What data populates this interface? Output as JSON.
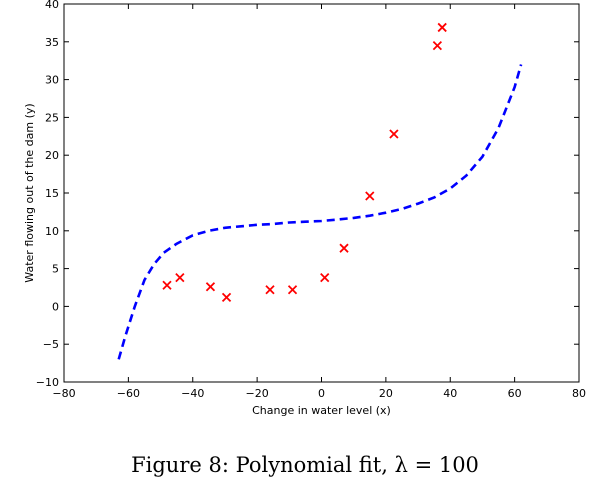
{
  "chart_data": {
    "type": "scatter",
    "xlabel": "Change in water level (x)",
    "ylabel": "Water flowing out of the dam (y)",
    "xlim": [
      -80,
      80
    ],
    "ylim": [
      -10,
      40
    ],
    "x_ticks": [
      -80,
      -60,
      -40,
      -20,
      0,
      20,
      40,
      60,
      80
    ],
    "y_ticks": [
      -10,
      -5,
      0,
      5,
      10,
      15,
      20,
      25,
      30,
      35,
      40
    ],
    "grid": false,
    "series": [
      {
        "kind": "scatter",
        "marker": "x",
        "color": "#ff0000",
        "points": [
          [
            -48,
            2.8
          ],
          [
            -44,
            3.8
          ],
          [
            -34.5,
            2.6
          ],
          [
            -29.5,
            1.2
          ],
          [
            -16,
            2.2
          ],
          [
            -9,
            2.2
          ],
          [
            1,
            3.8
          ],
          [
            7,
            7.7
          ],
          [
            15,
            14.6
          ],
          [
            22.5,
            22.8
          ],
          [
            36,
            34.5
          ],
          [
            37.5,
            36.9
          ]
        ]
      },
      {
        "kind": "line",
        "style": "dashed",
        "color": "#0000ff",
        "points": [
          [
            -63,
            -7
          ],
          [
            -61,
            -4
          ],
          [
            -58,
            0
          ],
          [
            -55,
            3.5
          ],
          [
            -52,
            5.6
          ],
          [
            -49,
            7.1
          ],
          [
            -45,
            8.3
          ],
          [
            -40,
            9.4
          ],
          [
            -35,
            10.0
          ],
          [
            -30,
            10.4
          ],
          [
            -25,
            10.6
          ],
          [
            -20,
            10.8
          ],
          [
            -15,
            10.9
          ],
          [
            -10,
            11.1
          ],
          [
            -5,
            11.2
          ],
          [
            0,
            11.3
          ],
          [
            5,
            11.5
          ],
          [
            10,
            11.7
          ],
          [
            15,
            12.0
          ],
          [
            20,
            12.4
          ],
          [
            25,
            12.9
          ],
          [
            30,
            13.6
          ],
          [
            35,
            14.4
          ],
          [
            40,
            15.6
          ],
          [
            45,
            17.3
          ],
          [
            50,
            19.8
          ],
          [
            55,
            23.6
          ],
          [
            60,
            29.0
          ],
          [
            62,
            32.0
          ]
        ]
      }
    ]
  },
  "caption": {
    "text": "Figure 8: Polynomial fit, λ = 100"
  }
}
